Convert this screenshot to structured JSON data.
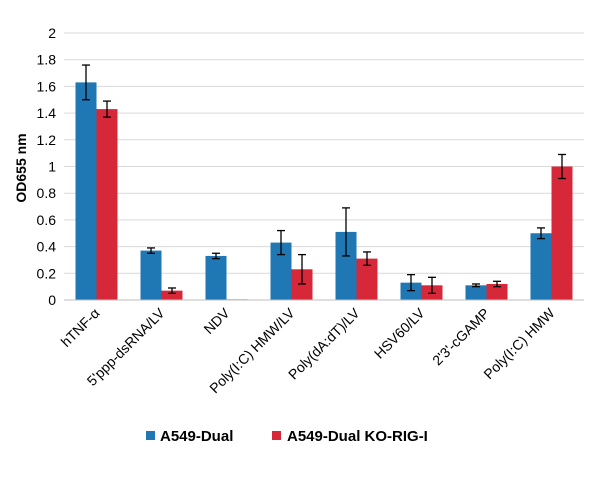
{
  "chart_data": {
    "type": "bar",
    "title": "",
    "xlabel": "",
    "ylabel": "OD655 nm",
    "ylim": [
      0,
      2
    ],
    "yticks": [
      "0",
      "0.2",
      "0.4",
      "0.6",
      "0.8",
      "1",
      "1.2",
      "1.4",
      "1.6",
      "1.8",
      "2"
    ],
    "grid": true,
    "legend_position": "bottom",
    "categories": [
      "hTNF-α",
      "5'ppp-dsRNA/LV",
      "NDV",
      "Poly(I:C) HMW/LV",
      "Poly(dA:dT)/LV",
      "HSV60/LV",
      "2'3'-cGAMP",
      "Poly(I:C) HMW"
    ],
    "series": [
      {
        "name": "A549-Dual",
        "color": "#1f77b4",
        "values": [
          1.63,
          0.37,
          0.33,
          0.43,
          0.51,
          0.13,
          0.11,
          0.5
        ],
        "errors": [
          0.13,
          0.02,
          0.02,
          0.09,
          0.18,
          0.06,
          0.01,
          0.04
        ]
      },
      {
        "name": "A549-Dual KO-RIG-I",
        "color": "#d62839",
        "values": [
          1.43,
          0.07,
          0.005,
          0.23,
          0.31,
          0.11,
          0.12,
          1.0
        ],
        "errors": [
          0.06,
          0.02,
          0.0,
          0.11,
          0.05,
          0.06,
          0.02,
          0.09
        ]
      }
    ]
  }
}
